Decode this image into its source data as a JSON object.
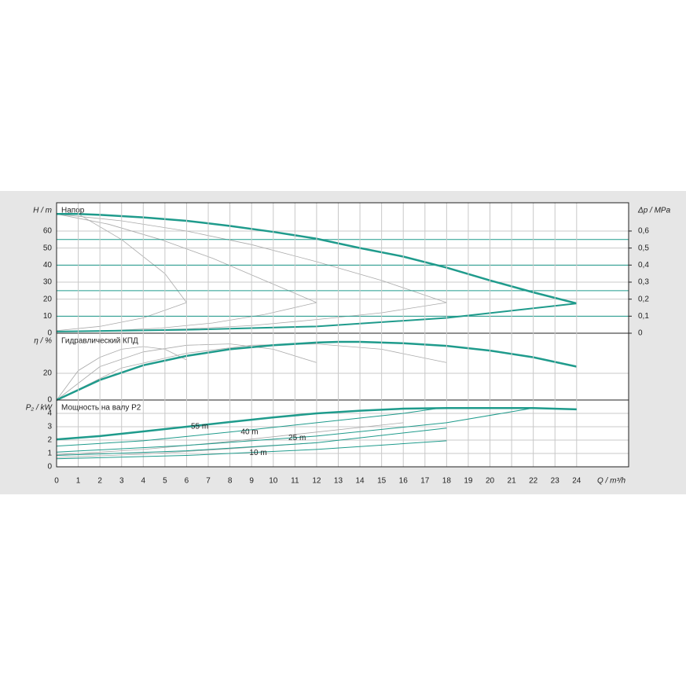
{
  "chart_data": [
    {
      "type": "line",
      "panel_title": "Напор",
      "ylabel": "H / m",
      "y2label": "Δp / MPa",
      "xlim": [
        0,
        26.4
      ],
      "ylim": [
        0,
        76.6
      ],
      "yticks": [
        0,
        10,
        20,
        30,
        40,
        50,
        60
      ],
      "y2lim": [
        0,
        0.766
      ],
      "y2ticks": [
        0,
        {
          "value": 0.1,
          "label": "0,1"
        },
        {
          "value": 0.2,
          "label": "0,2"
        },
        {
          "value": 0.3,
          "label": "0,3"
        },
        {
          "value": 0.4,
          "label": "0,4"
        },
        {
          "value": 0.5,
          "label": "0,5"
        },
        {
          "value": 0.6,
          "label": "0,6"
        }
      ],
      "grid": true,
      "series": [
        {
          "color": "#aaaaaa",
          "width": 0.8,
          "x": [
            1,
            3,
            5,
            6
          ],
          "values": [
            70,
            55,
            35,
            18
          ]
        },
        {
          "color": "#aaaaaa",
          "width": 0.8,
          "x": [
            0,
            2,
            4,
            6
          ],
          "values": [
            1.5,
            4,
            9,
            18
          ]
        },
        {
          "color": "#aaaaaa",
          "width": 0.8,
          "x": [
            0,
            2.4,
            4.8,
            7.2,
            9.6,
            12
          ],
          "values": [
            70,
            64,
            55,
            44,
            31,
            18
          ]
        },
        {
          "color": "#aaaaaa",
          "width": 0.8,
          "x": [
            0,
            2.4,
            4.8,
            7.2,
            9.6,
            12
          ],
          "values": [
            1,
            1.5,
            3,
            6,
            11,
            18
          ]
        },
        {
          "color": "#aaaaaa",
          "width": 0.8,
          "x": [
            0,
            3,
            6,
            9,
            12,
            15,
            18
          ],
          "values": [
            70,
            66,
            60,
            52,
            42,
            31,
            18
          ]
        },
        {
          "color": "#aaaaaa",
          "width": 0.8,
          "x": [
            0,
            3,
            6,
            9,
            12,
            15,
            18
          ],
          "values": [
            1,
            1.5,
            2.5,
            4.5,
            8,
            12,
            18
          ]
        },
        {
          "color": "#1f9b8c",
          "width": 1,
          "x": [
            0,
            26.4
          ],
          "values": [
            55,
            55
          ]
        },
        {
          "color": "#1f9b8c",
          "width": 1,
          "x": [
            0,
            26.4
          ],
          "values": [
            40,
            40
          ]
        },
        {
          "color": "#1f9b8c",
          "width": 1,
          "x": [
            0,
            26.4
          ],
          "values": [
            25,
            25
          ]
        },
        {
          "color": "#1f9b8c",
          "width": 1,
          "x": [
            0,
            26.4
          ],
          "values": [
            10,
            10
          ]
        },
        {
          "color": "#1f9b8c",
          "width": 2,
          "x": [
            0,
            6,
            12,
            18,
            24
          ],
          "values": [
            1,
            2,
            4,
            9,
            17.5
          ]
        },
        {
          "color": "#1f9b8c",
          "width": 2.5,
          "x": [
            0,
            1,
            2,
            4,
            6,
            8,
            10,
            12,
            14,
            16,
            18,
            20,
            22,
            24
          ],
          "values": [
            70,
            70,
            69.5,
            68,
            66,
            63,
            59.5,
            55.5,
            50,
            45,
            38.5,
            31,
            24,
            17.5
          ]
        }
      ]
    },
    {
      "type": "line",
      "panel_title": "Гидравлический КПД",
      "ylabel": "η / %",
      "xlim": [
        0,
        26.4
      ],
      "ylim": [
        0,
        50
      ],
      "yticks": [
        0,
        20
      ],
      "grid": true,
      "series": [
        {
          "color": "#aaaaaa",
          "width": 0.8,
          "x": [
            0,
            1,
            2,
            3,
            4,
            5,
            6
          ],
          "values": [
            0,
            22,
            32,
            38,
            40,
            38,
            30
          ]
        },
        {
          "color": "#aaaaaa",
          "width": 0.8,
          "x": [
            0,
            2,
            4,
            6,
            8,
            10,
            12
          ],
          "values": [
            0,
            25,
            36,
            41,
            42,
            38,
            28
          ]
        },
        {
          "color": "#aaaaaa",
          "width": 0.8,
          "x": [
            0,
            3,
            6,
            9,
            12,
            15,
            18
          ],
          "values": [
            0,
            24,
            35,
            41,
            42,
            38,
            28
          ]
        },
        {
          "color": "#1f9b8c",
          "width": 2.5,
          "x": [
            0,
            2,
            4,
            6,
            8,
            10,
            12,
            13,
            14,
            16,
            18,
            20,
            22,
            24
          ],
          "values": [
            0,
            15,
            26,
            33,
            38,
            41,
            43,
            43.5,
            43.5,
            42.5,
            40.5,
            37,
            32,
            25
          ]
        }
      ]
    },
    {
      "type": "line",
      "panel_title": "Мощность на валу P2",
      "ylabel": "P₂ / kW",
      "xlabel": "Q / m³/h",
      "xlim": [
        0,
        26.4
      ],
      "ylim": [
        0,
        5
      ],
      "yticks": [
        0,
        1,
        2,
        3,
        4
      ],
      "xticks": [
        0,
        1,
        2,
        3,
        4,
        5,
        6,
        7,
        8,
        9,
        10,
        11,
        12,
        13,
        14,
        15,
        16,
        17,
        18,
        19,
        20,
        21,
        22,
        23,
        24
      ],
      "grid": true,
      "series": [
        {
          "color": "#aaaaaa",
          "width": 0.8,
          "x": [
            0,
            4,
            8,
            12,
            16
          ],
          "values": [
            0.9,
            1.3,
            1.9,
            2.6,
            3.3
          ]
        },
        {
          "color": "#aaaaaa",
          "width": 0.8,
          "x": [
            0,
            4,
            8,
            12
          ],
          "values": [
            0.7,
            0.95,
            1.35,
            1.8
          ]
        },
        {
          "color": "#1f9b8c",
          "width": 1,
          "x": [
            0,
            6,
            12,
            18
          ],
          "values": [
            0.6,
            0.85,
            1.3,
            1.95
          ]
        },
        {
          "color": "#1f9b8c",
          "width": 1,
          "x": [
            0,
            6,
            12,
            18
          ],
          "values": [
            0.85,
            1.2,
            1.8,
            2.9
          ]
        },
        {
          "color": "#1f9b8c",
          "width": 1,
          "x": [
            0,
            6,
            12,
            18,
            22
          ],
          "values": [
            1.1,
            1.6,
            2.3,
            3.3,
            4.4
          ]
        },
        {
          "color": "#1f9b8c",
          "width": 1,
          "x": [
            0,
            4,
            8,
            12,
            16,
            17.7
          ],
          "values": [
            1.55,
            1.95,
            2.6,
            3.3,
            4.0,
            4.4
          ]
        },
        {
          "color": "#1f9b8c",
          "width": 2.5,
          "x": [
            0,
            2,
            4,
            6,
            8,
            10,
            12,
            14,
            16,
            18,
            20,
            22,
            24
          ],
          "values": [
            2.05,
            2.3,
            2.65,
            3.0,
            3.35,
            3.7,
            4.0,
            4.2,
            4.35,
            4.4,
            4.4,
            4.4,
            4.3
          ]
        }
      ],
      "annotations": [
        {
          "text": "55 m",
          "x": 6.2,
          "y": 3.0,
          "color": "#1f9b8c"
        },
        {
          "text": "40 m",
          "x": 8.5,
          "y": 2.6,
          "color": "#1f9b8c"
        },
        {
          "text": "25 m",
          "x": 10.7,
          "y": 2.15,
          "color": "#1f9b8c"
        },
        {
          "text": "10 m",
          "x": 8.9,
          "y": 1.05,
          "color": "#1f9b8c"
        }
      ]
    }
  ]
}
